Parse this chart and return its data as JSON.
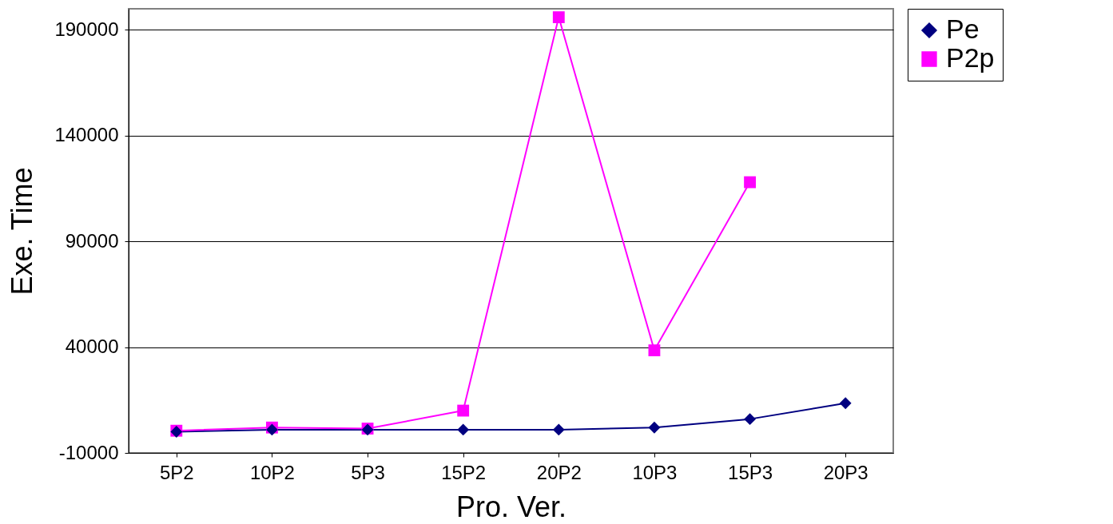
{
  "chart_data": {
    "type": "line",
    "xlabel": "Pro. Ver.",
    "ylabel": "Exe. Time",
    "categories": [
      "5P2",
      "10P2",
      "5P3",
      "15P2",
      "20P2",
      "10P3",
      "15P3",
      "20P3"
    ],
    "series": [
      {
        "name": "Pe",
        "color": "#000080",
        "marker": "diamond",
        "values": [
          0,
          1000,
          1000,
          1000,
          1000,
          2000,
          6000,
          13500
        ]
      },
      {
        "name": "P2p",
        "color": "#ff00ff",
        "marker": "square",
        "values": [
          500,
          2000,
          1500,
          10000,
          196000,
          38500,
          118000,
          null
        ]
      }
    ],
    "ylim": [
      -10000,
      200000
    ],
    "yticks": [
      -10000,
      40000,
      90000,
      140000,
      190000
    ],
    "grid": "y",
    "legend": "right"
  }
}
